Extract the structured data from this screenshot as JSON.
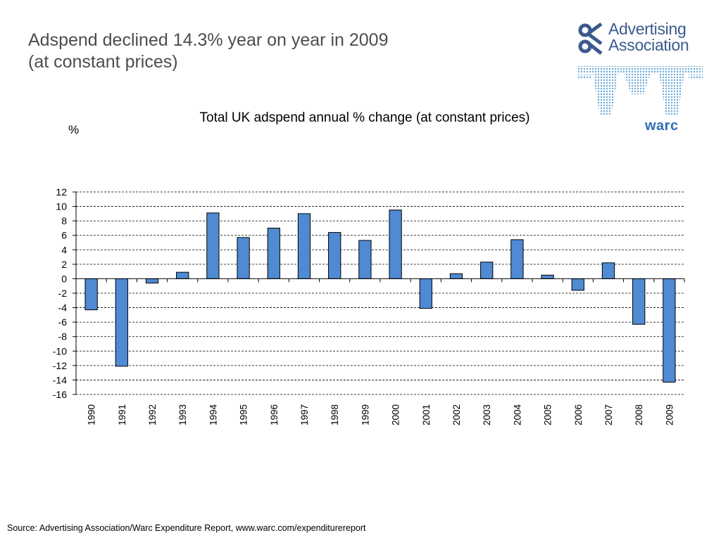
{
  "page": {
    "headline_line1": "Adspend declined 14.3% year on year in 2009",
    "headline_line2": "(at constant prices)",
    "source": "Source: Advertising Association/Warc Expenditure Report, www.warc.com/expenditurereport"
  },
  "logos": {
    "aa_line1": "Advertising",
    "aa_line2": "Association",
    "warc": "warc",
    "aa_color": "#3a5a8c",
    "warc_color": "#2f6db5"
  },
  "chart_data": {
    "type": "bar",
    "title": "Total UK adspend annual % change (at constant prices)",
    "ylabel": "%",
    "xlabel": "",
    "categories": [
      "1990",
      "1991",
      "1992",
      "1993",
      "1994",
      "1995",
      "1996",
      "1997",
      "1998",
      "1999",
      "2000",
      "2001",
      "2002",
      "2003",
      "2004",
      "2005",
      "2006",
      "2007",
      "2008",
      "2009"
    ],
    "values": [
      -4.3,
      -12.1,
      -0.6,
      0.9,
      9.1,
      5.7,
      7.0,
      9.0,
      6.4,
      5.3,
      9.5,
      -4.1,
      0.7,
      2.3,
      5.4,
      0.5,
      -1.6,
      2.2,
      -6.3,
      -14.3
    ],
    "ylim": [
      -16,
      12
    ],
    "yticks": [
      12,
      10,
      8,
      6,
      4,
      2,
      0,
      -2,
      -4,
      -6,
      -8,
      -10,
      -12,
      -14,
      -16
    ],
    "grid": "horizontal dashed",
    "bar_color": "#4f8ad3",
    "bar_edge_color": "#000000"
  }
}
